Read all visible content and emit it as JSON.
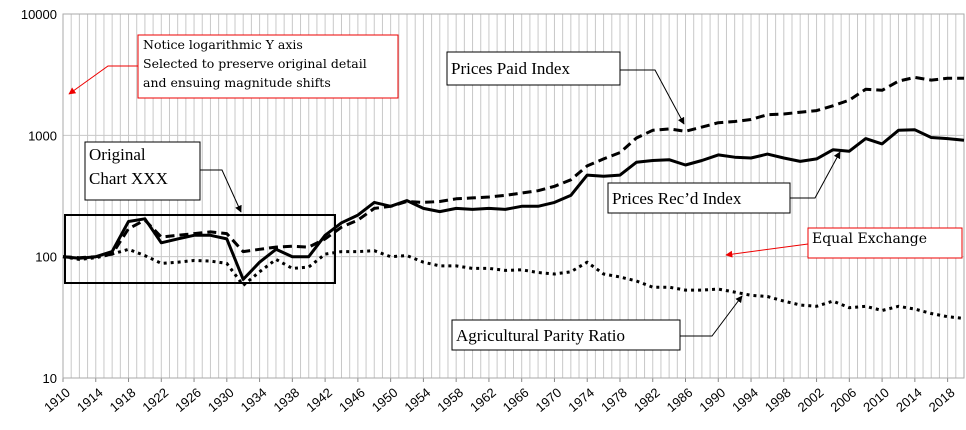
{
  "chart_data": {
    "type": "line",
    "xlim": [
      1910,
      2020
    ],
    "xticks": [
      1910,
      1914,
      1918,
      1922,
      1926,
      1930,
      1934,
      1938,
      1942,
      1946,
      1950,
      1954,
      1958,
      1962,
      1966,
      1970,
      1974,
      1978,
      1982,
      1986,
      1990,
      1994,
      1998,
      2002,
      2006,
      2010,
      2014,
      2018
    ],
    "xgrid_step": 1,
    "ylim": [
      10,
      10000
    ],
    "yticks": [
      10,
      100,
      1000,
      10000
    ],
    "ylog": true,
    "grid": true,
    "x": [
      1910,
      1912,
      1914,
      1916,
      1918,
      1920,
      1922,
      1924,
      1926,
      1928,
      1930,
      1932,
      1934,
      1936,
      1938,
      1940,
      1942,
      1944,
      1946,
      1948,
      1950,
      1952,
      1954,
      1956,
      1958,
      1960,
      1962,
      1964,
      1966,
      1968,
      1970,
      1972,
      1974,
      1976,
      1978,
      1980,
      1982,
      1984,
      1986,
      1988,
      1990,
      1992,
      1994,
      1996,
      1998,
      2000,
      2002,
      2004,
      2006,
      2008,
      2010,
      2012,
      2014,
      2016,
      2018,
      2020
    ],
    "series": [
      {
        "name": "Prices Paid Index",
        "color": "#000000",
        "dash": "dashed",
        "values": [
          100,
          98,
          100,
          105,
          170,
          200,
          145,
          150,
          155,
          160,
          155,
          110,
          115,
          120,
          122,
          120,
          140,
          175,
          200,
          250,
          260,
          285,
          280,
          285,
          300,
          305,
          310,
          320,
          335,
          350,
          380,
          430,
          560,
          640,
          720,
          950,
          1100,
          1130,
          1080,
          1170,
          1270,
          1300,
          1350,
          1480,
          1500,
          1550,
          1600,
          1750,
          1950,
          2400,
          2350,
          2800,
          3000,
          2850,
          2950,
          2950
        ]
      },
      {
        "name": "Prices Rec’d Index",
        "color": "#000000",
        "dash": "solid",
        "values": [
          100,
          97,
          100,
          110,
          195,
          205,
          130,
          140,
          150,
          150,
          140,
          65,
          90,
          115,
          100,
          100,
          150,
          190,
          220,
          280,
          260,
          290,
          250,
          235,
          250,
          245,
          250,
          245,
          260,
          260,
          280,
          320,
          470,
          460,
          470,
          600,
          620,
          630,
          570,
          620,
          690,
          660,
          650,
          700,
          650,
          610,
          640,
          760,
          740,
          940,
          850,
          1100,
          1110,
          960,
          940,
          910
        ]
      },
      {
        "name": "Agricultural Parity Ratio",
        "color": "#000000",
        "dash": "dotted",
        "values": [
          100,
          95,
          98,
          105,
          115,
          102,
          88,
          90,
          93,
          92,
          88,
          58,
          75,
          95,
          80,
          82,
          105,
          110,
          110,
          112,
          100,
          102,
          90,
          84,
          84,
          80,
          80,
          77,
          78,
          74,
          72,
          75,
          90,
          72,
          68,
          63,
          56,
          56,
          53,
          53,
          54,
          51,
          48,
          47,
          43,
          40,
          39,
          43,
          38,
          39,
          36,
          39,
          37,
          34,
          32,
          31
        ]
      }
    ],
    "annotations": {
      "log_note": [
        "Notice logarithmic Y axis",
        "Selected to preserve original detail",
        "and ensuing magnitude shifts"
      ],
      "original": [
        "Original",
        "Chart XXX"
      ],
      "equal_exchange": "Equal Exchange"
    }
  }
}
